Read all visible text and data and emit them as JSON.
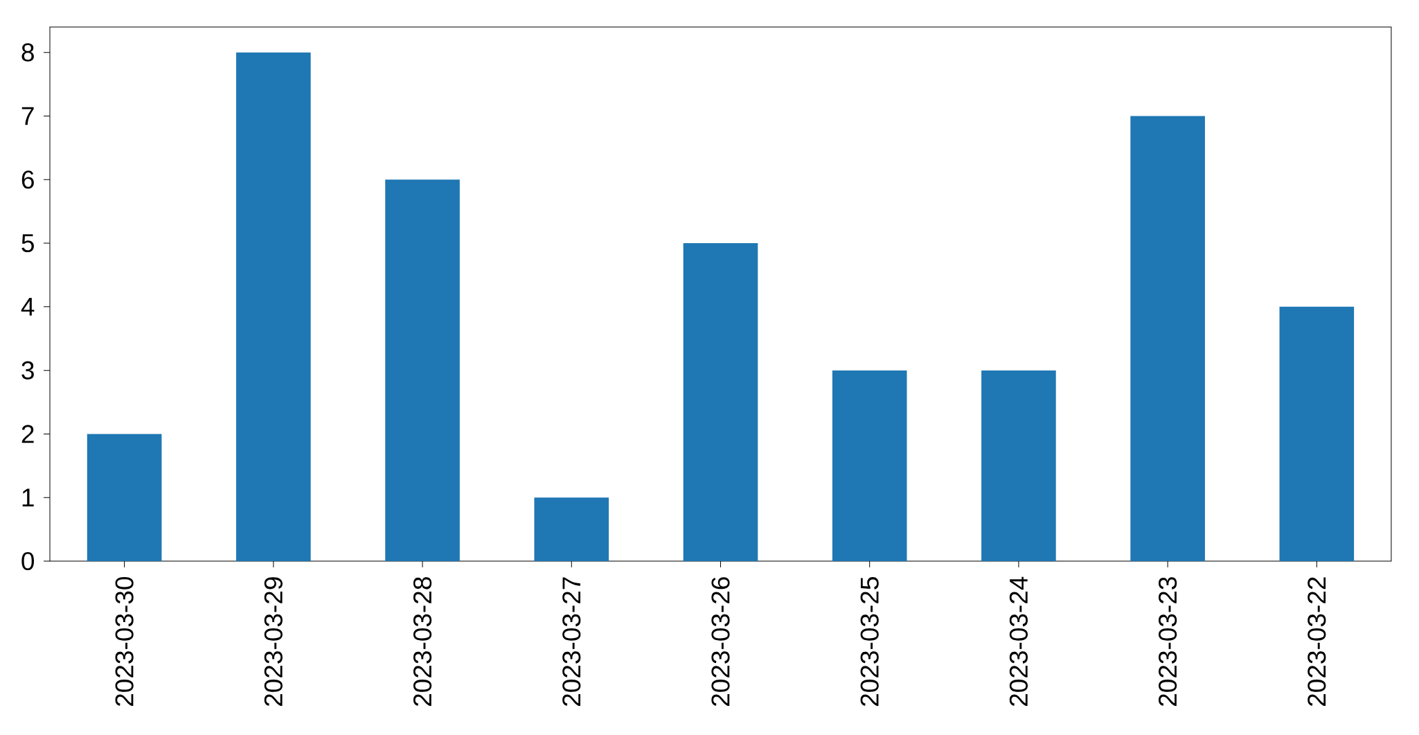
{
  "chart_data": {
    "type": "bar",
    "categories": [
      "2023-03-30",
      "2023-03-29",
      "2023-03-28",
      "2023-03-27",
      "2023-03-26",
      "2023-03-25",
      "2023-03-24",
      "2023-03-23",
      "2023-03-22"
    ],
    "values": [
      2,
      8,
      6,
      1,
      5,
      3,
      3,
      7,
      4
    ],
    "color": "#1f77b4",
    "ylim": [
      0,
      8.4
    ],
    "yticks": [
      0,
      1,
      2,
      3,
      4,
      5,
      6,
      7,
      8
    ],
    "grid": false
  }
}
